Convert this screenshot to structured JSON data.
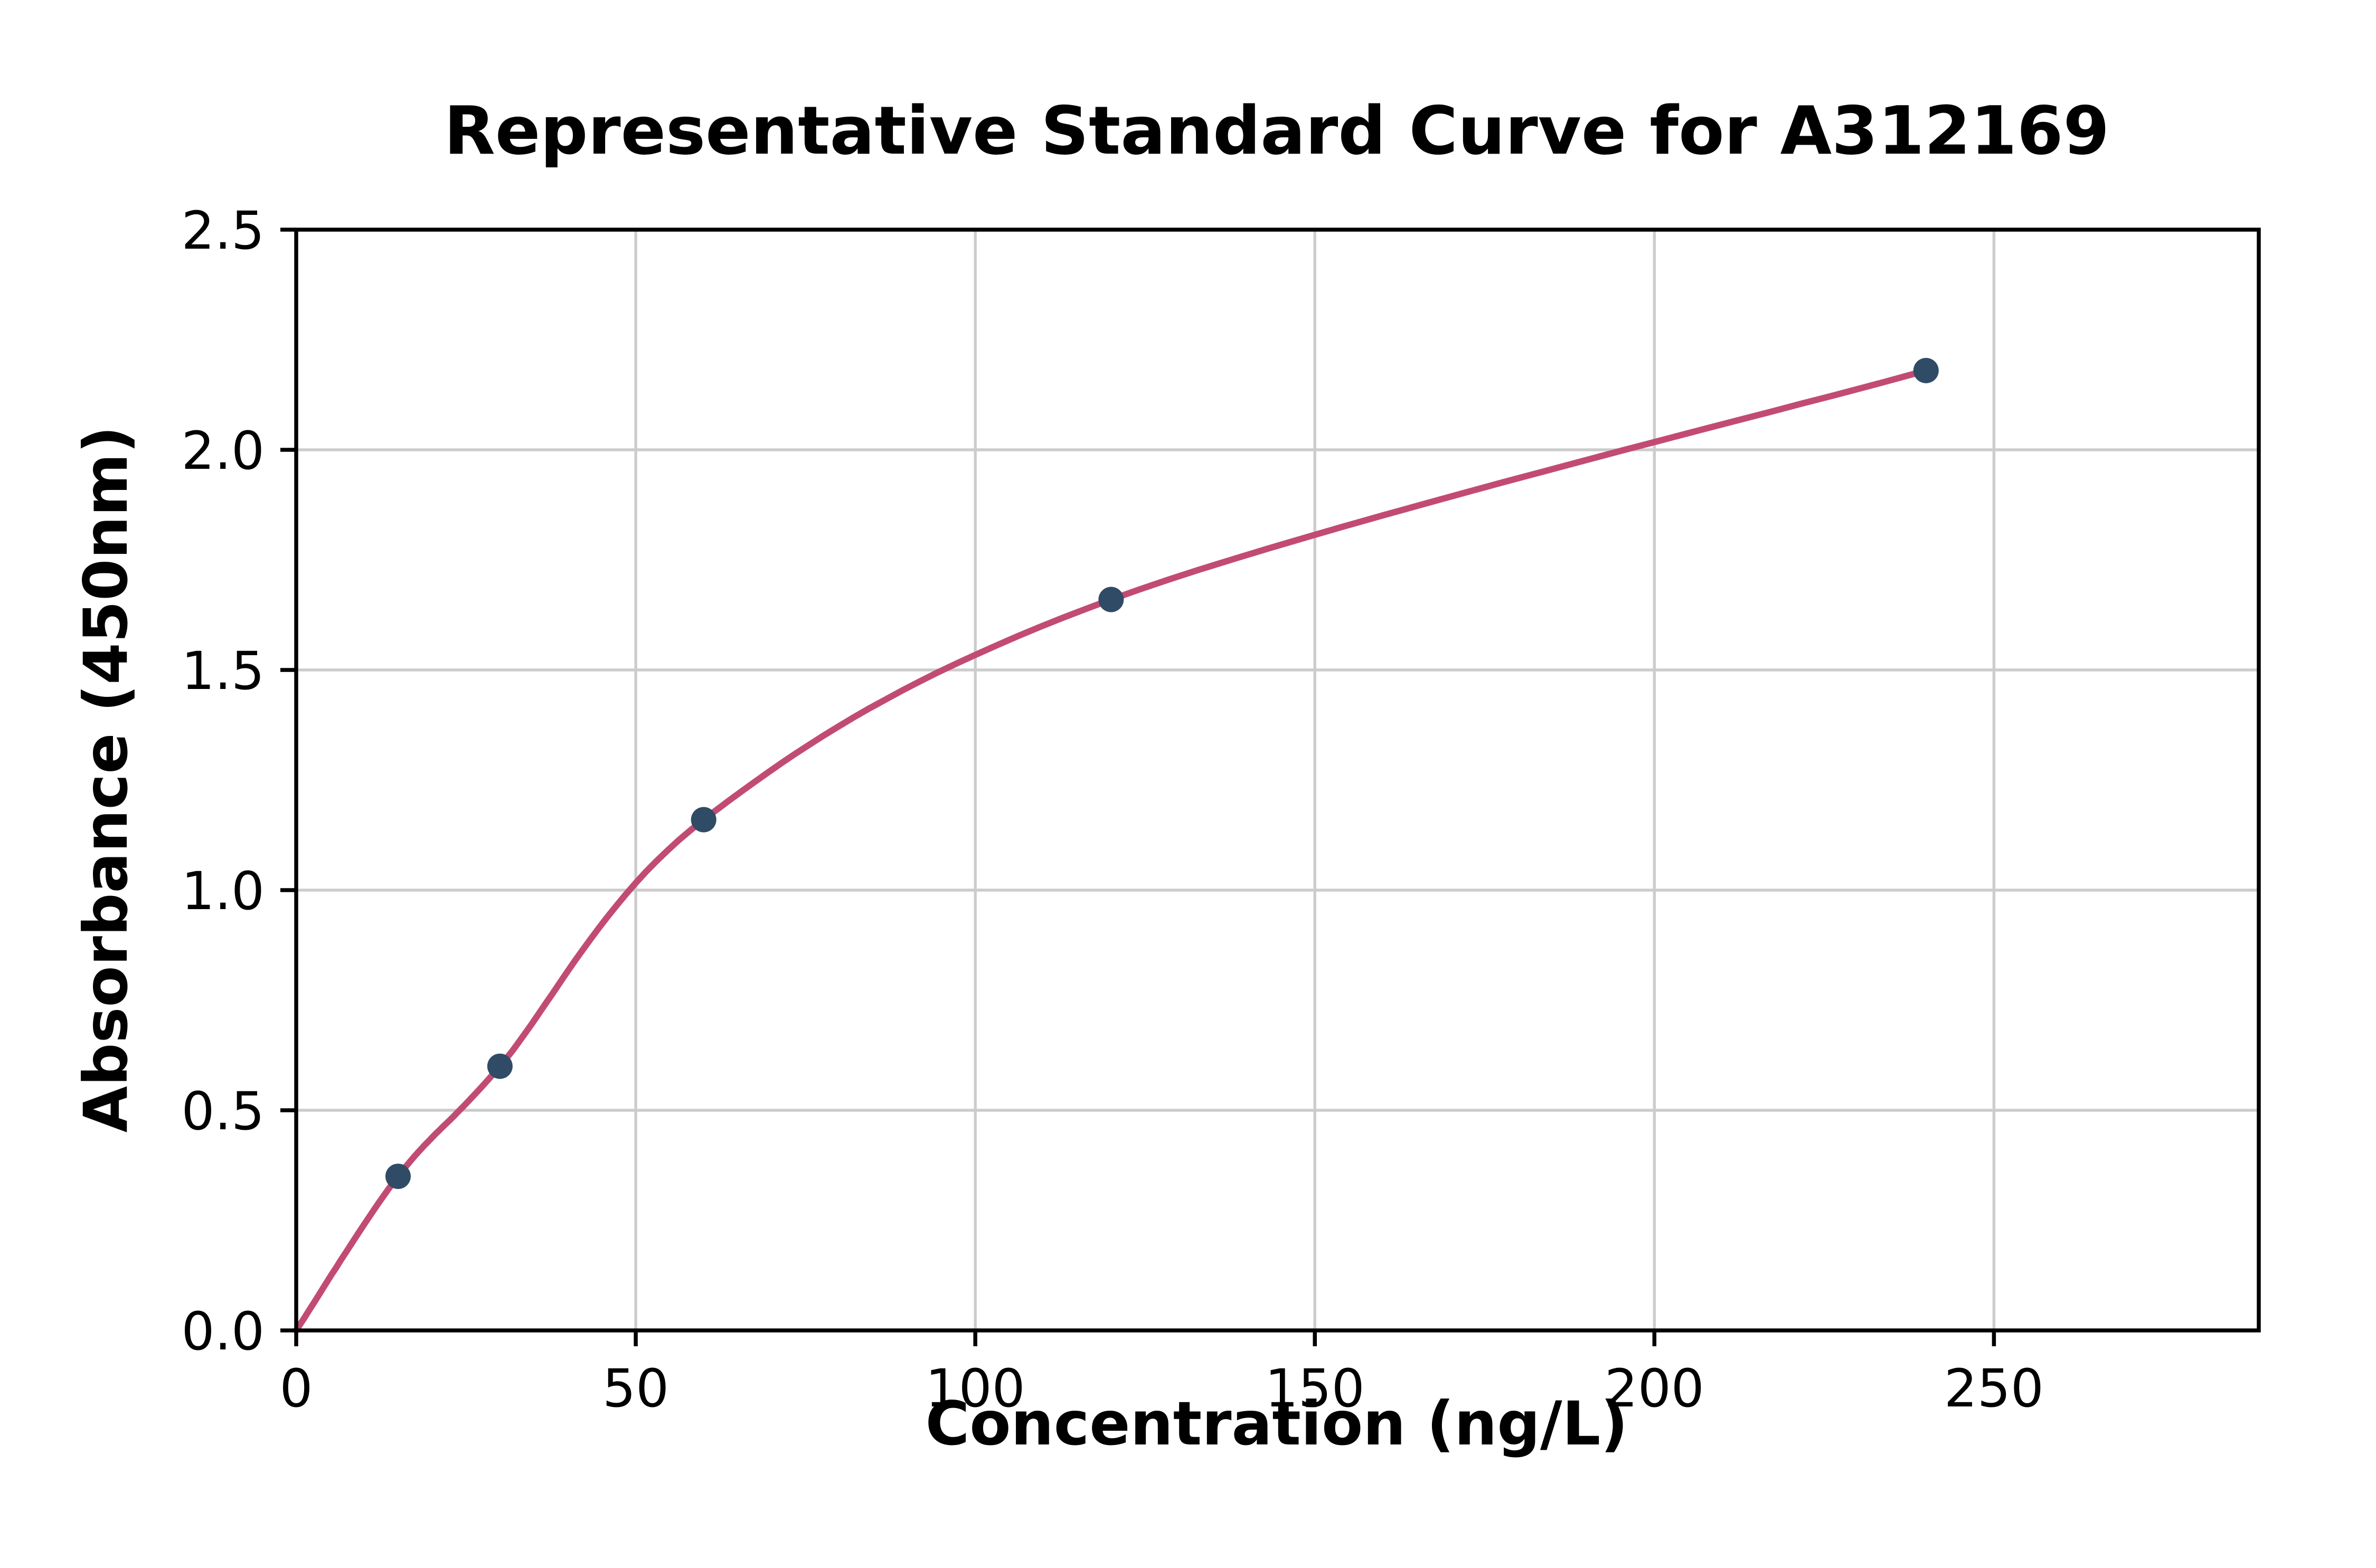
{
  "page": {
    "background_color": "#ffffff"
  },
  "chart_data": {
    "type": "scatter",
    "title": "Representative Standard Curve for A312169",
    "xlabel": "Concentration (ng/L)",
    "ylabel": "Absorbance (450nm)",
    "xlim": [
      0,
      289
    ],
    "ylim": [
      0,
      2.5
    ],
    "x_ticks": [
      0,
      50,
      100,
      150,
      200,
      250
    ],
    "x_tick_labels": [
      "0",
      "50",
      "100",
      "150",
      "200",
      "250"
    ],
    "y_ticks": [
      0,
      0.5,
      1.0,
      1.5,
      2.0,
      2.5
    ],
    "y_tick_labels": [
      "0.0",
      "0.5",
      "1.0",
      "1.5",
      "2.0",
      "2.5"
    ],
    "grid": true,
    "legend": "none",
    "points": [
      {
        "x": 15,
        "y": 0.35
      },
      {
        "x": 30,
        "y": 0.6
      },
      {
        "x": 60,
        "y": 1.16
      },
      {
        "x": 120,
        "y": 1.66
      },
      {
        "x": 240,
        "y": 2.18
      }
    ],
    "fit_curve_through": [
      [
        0,
        0
      ],
      [
        15,
        0.35
      ],
      [
        30,
        0.6
      ],
      [
        60,
        1.16
      ],
      [
        120,
        1.66
      ],
      [
        240,
        2.18
      ]
    ],
    "colors": {
      "curve": "#c24b74",
      "point": "#2f4b66",
      "grid": "#cccccc",
      "spine": "#000000"
    }
  }
}
